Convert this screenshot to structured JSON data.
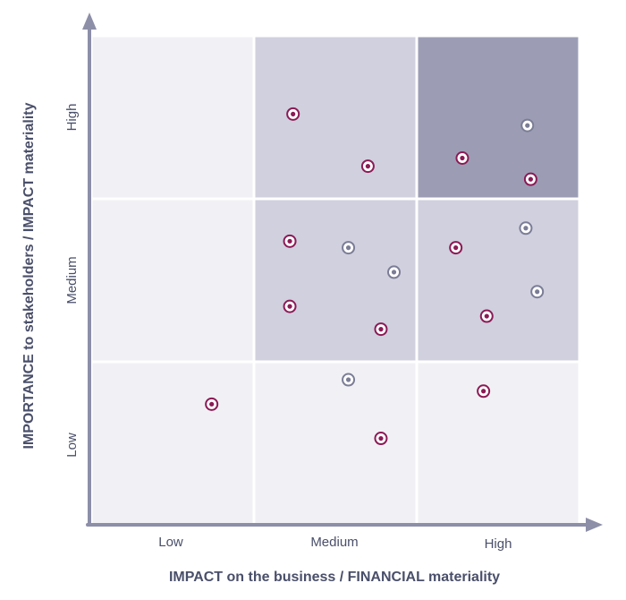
{
  "chart_data": {
    "type": "scatter",
    "title": "",
    "xlabel": "IMPACT on the business / FINANCIAL materiality",
    "ylabel": "IMPORTANCE to stakeholders / IMPACT materiality",
    "x_categories": [
      "Low",
      "Medium",
      "High"
    ],
    "y_categories": [
      "Low",
      "Medium",
      "High"
    ],
    "xlim": [
      0,
      3
    ],
    "ylim": [
      0,
      3
    ],
    "grid": true,
    "legend": "none",
    "cells": [
      {
        "x": 0,
        "y": 0,
        "level": 0
      },
      {
        "x": 1,
        "y": 0,
        "level": 0
      },
      {
        "x": 2,
        "y": 0,
        "level": 0
      },
      {
        "x": 0,
        "y": 1,
        "level": 0
      },
      {
        "x": 1,
        "y": 1,
        "level": 1
      },
      {
        "x": 2,
        "y": 1,
        "level": 1
      },
      {
        "x": 0,
        "y": 2,
        "level": 0
      },
      {
        "x": 1,
        "y": 2,
        "level": 1
      },
      {
        "x": 2,
        "y": 2,
        "level": 2
      }
    ],
    "cell_colors": [
      "#f1f1f5",
      "#d0d0df",
      "#9c9db5"
    ],
    "series": [
      {
        "color": "#8b1a55",
        "points": [
          {
            "x": 0.74,
            "y": 0.74
          },
          {
            "x": 1.24,
            "y": 2.52
          },
          {
            "x": 1.7,
            "y": 2.2
          },
          {
            "x": 2.28,
            "y": 2.25
          },
          {
            "x": 2.7,
            "y": 2.12
          },
          {
            "x": 1.22,
            "y": 1.74
          },
          {
            "x": 1.22,
            "y": 1.34
          },
          {
            "x": 1.78,
            "y": 1.2
          },
          {
            "x": 2.24,
            "y": 1.7
          },
          {
            "x": 2.43,
            "y": 1.28
          },
          {
            "x": 2.41,
            "y": 0.82
          },
          {
            "x": 1.78,
            "y": 0.53
          }
        ]
      },
      {
        "color": "#7b7d96",
        "points": [
          {
            "x": 2.68,
            "y": 2.45
          },
          {
            "x": 1.58,
            "y": 1.7
          },
          {
            "x": 1.86,
            "y": 1.55
          },
          {
            "x": 2.67,
            "y": 1.82
          },
          {
            "x": 2.74,
            "y": 1.43
          },
          {
            "x": 1.58,
            "y": 0.89
          }
        ]
      }
    ]
  }
}
